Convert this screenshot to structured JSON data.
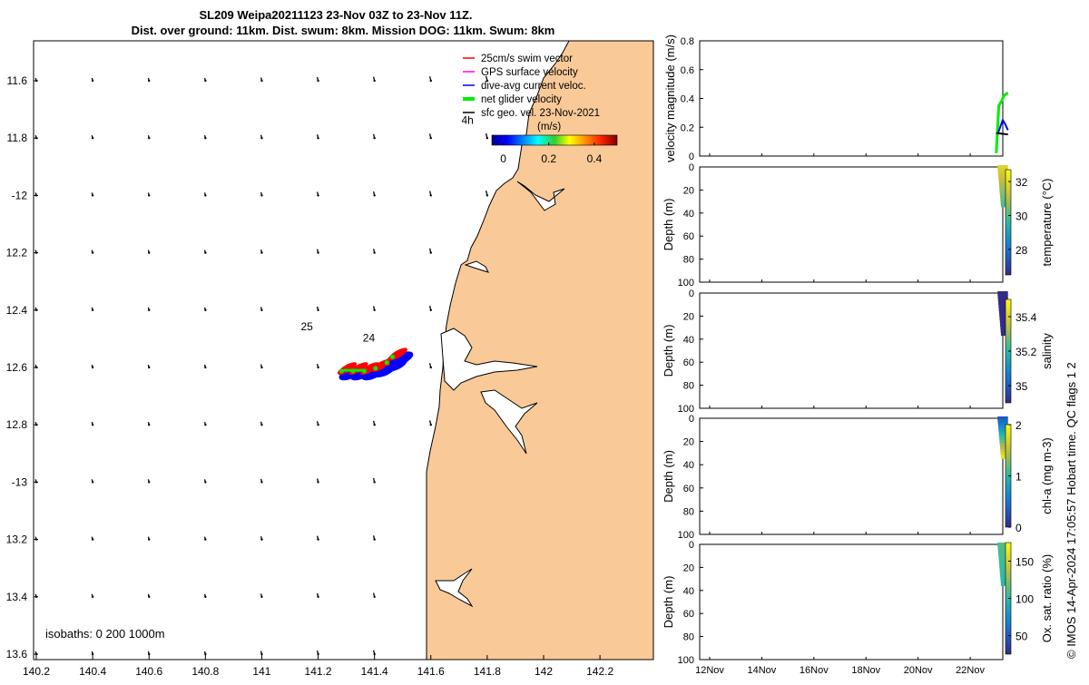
{
  "title_line1": "SL209 Weipa20211123 23-Nov 03Z to 23-Nov 11Z.",
  "title_line2": "Dist. over ground: 11km. Dist. swum: 8km. Mission DOG: 11km. Swum: 8km",
  "isobaths_label": "isobaths: 0   200  1000m",
  "footer_note": "© IMOS 14-Apr-2024 17:05:57 Hobart time. QC flags 1  2",
  "colors": {
    "land": "#f9c997",
    "swim": "#ff0000",
    "gps": "#ff00ff",
    "dive": "#0000ff",
    "net": "#00ee00",
    "geo": "#000000"
  },
  "chart_data": [
    {
      "type": "scatter",
      "name": "map",
      "xlim": [
        140.2,
        142.4
      ],
      "ylim": [
        -13.62,
        -11.4
      ],
      "xticks": [
        140.2,
        140.4,
        140.6,
        140.8,
        141,
        141.2,
        141.4,
        141.6,
        141.8,
        142,
        142.2
      ],
      "xticklabels": [
        "140.2",
        "140.4",
        "140.6",
        "140.8",
        "141",
        "141.2",
        "141.4",
        "141.6",
        "141.8",
        "142",
        "142.2"
      ],
      "yticks": [
        -11.6,
        -11.8,
        -12,
        -12.2,
        -12.4,
        -12.6,
        -12.8,
        -13,
        -13.2,
        -13.4,
        -13.6
      ],
      "yticklabels": [
        "11.6",
        "11.8",
        "-12",
        "12.2",
        "12.4",
        "12.6",
        "12.8",
        "-13",
        "13.2",
        "13.4",
        "13.6"
      ],
      "legend": [
        "25cm/s swim vector",
        "GPS surface velocity",
        "dive-avg current veloc.",
        "net glider velocity",
        "sfc geo. vel. 23-Nov-2021"
      ],
      "legend_position": "top-right",
      "annotations": [
        {
          "text": "4h",
          "x": 141.73,
          "y": -11.75
        },
        {
          "text": "25",
          "x": 141.16,
          "y": -12.47
        },
        {
          "text": "24",
          "x": 141.38,
          "y": -12.51
        }
      ],
      "colorbar": {
        "label": "(m/s)",
        "ticks": [
          0,
          0.2,
          0.4
        ],
        "tick_labels": [
          "0",
          "0.2",
          "0.4"
        ],
        "range": [
          -0.05,
          0.5
        ]
      },
      "track_points": [
        {
          "x": 141.29,
          "y": -12.61
        },
        {
          "x": 141.33,
          "y": -12.61
        },
        {
          "x": 141.37,
          "y": -12.61
        },
        {
          "x": 141.41,
          "y": -12.6
        },
        {
          "x": 141.45,
          "y": -12.58
        },
        {
          "x": 141.47,
          "y": -12.56
        }
      ]
    },
    {
      "type": "line",
      "name": "velocity",
      "ylabel": "velocity magnitude (m/s)",
      "ylim": [
        0,
        0.8
      ],
      "yticks": [
        0,
        0.2,
        0.4,
        0.6,
        0.8
      ],
      "yticklabels": [
        "0",
        "0.2",
        "0.4",
        "0.6",
        "0.8"
      ],
      "x_dates": [
        "12Nov",
        "14Nov",
        "16Nov",
        "18Nov",
        "20Nov",
        "22Nov"
      ],
      "xlim_days": [
        11.3,
        23.6
      ],
      "series": [
        {
          "color": "#00ee00",
          "x": [
            23.0,
            23.1,
            23.2,
            23.3,
            23.45
          ],
          "y": [
            0.02,
            0.35,
            0.38,
            0.42,
            0.44
          ]
        },
        {
          "color": "#0000ff",
          "x": [
            23.05,
            23.15,
            23.25,
            23.35,
            23.45
          ],
          "y": [
            0.15,
            0.2,
            0.25,
            0.22,
            0.18
          ]
        },
        {
          "color": "#000000",
          "x": [
            23.0,
            23.45
          ],
          "y": [
            0.16,
            0.15
          ]
        }
      ]
    },
    {
      "type": "scatter",
      "name": "temperature",
      "ylabel": "Depth (m)",
      "cbar_label": "temperature (°C)",
      "cbar_ticks": [
        28,
        30,
        32
      ],
      "cbar_range": [
        26.5,
        32.7
      ],
      "colormap": "parula",
      "ylim": [
        0,
        100
      ],
      "yticks": [
        0,
        20,
        40,
        60,
        80,
        100
      ],
      "depth_max": 33,
      "value_top": 31.8,
      "value_bottom": 30.0
    },
    {
      "type": "scatter",
      "name": "salinity",
      "ylabel": "Depth (m)",
      "cbar_label": "salinity",
      "cbar_ticks": [
        35,
        35.2,
        35.4
      ],
      "cbar_ticklabels": [
        "35",
        "35.2",
        "35.4"
      ],
      "cbar_range": [
        34.9,
        35.5
      ],
      "colormap": "parula",
      "ylim": [
        0,
        100
      ],
      "yticks": [
        0,
        20,
        40,
        60,
        80,
        100
      ],
      "depth_max": 35,
      "value_top": 34.9,
      "value_bottom": 34.9
    },
    {
      "type": "scatter",
      "name": "chla",
      "ylabel": "Depth (m)",
      "cbar_label": "chl-a (mg m-3)",
      "cbar_ticks": [
        0,
        1,
        2
      ],
      "cbar_range": [
        0,
        2
      ],
      "colormap": "parula",
      "ylim": [
        0,
        100
      ],
      "yticks": [
        0,
        20,
        40,
        60,
        80,
        100
      ],
      "depth_max": 33,
      "value_top": 0.3,
      "value_bottom": 1.8
    },
    {
      "type": "scatter",
      "name": "oxygen",
      "ylabel": "Depth (m)",
      "cbar_label": "Ox. sat. ratio (%)",
      "cbar_ticks": [
        50,
        100,
        150
      ],
      "cbar_range": [
        25,
        175
      ],
      "colormap": "parula",
      "ylim": [
        0,
        100
      ],
      "yticks": [
        0,
        20,
        40,
        60,
        80,
        100
      ],
      "depth_max": 34,
      "value_top": 110,
      "value_bottom": 100
    }
  ]
}
